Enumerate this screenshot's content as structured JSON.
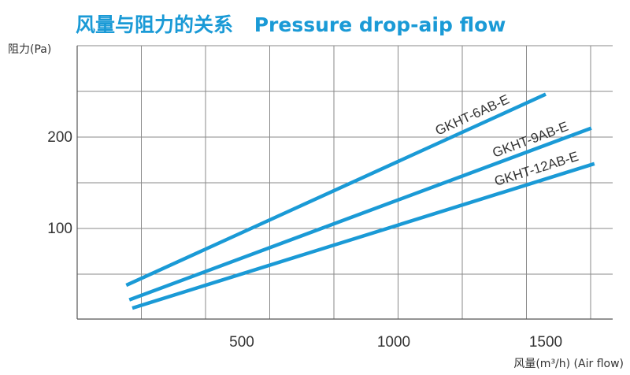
{
  "colors": {
    "title": "#1a9ad6",
    "series": "#1a9ad6",
    "grid": "#8a8a8a",
    "text": "#333333"
  },
  "chart_data": {
    "type": "line",
    "title": "风量与阻力的关系",
    "subtitle": "Pressure drop-aip flow",
    "xlabel": "风量(m³/h)  (Air flow)",
    "ylabel": "阻力(Pa)",
    "xlim": [
      -50,
      1800
    ],
    "ylim": [
      -15,
      300
    ],
    "x_ticks": [
      500,
      1000,
      1500
    ],
    "y_ticks": [
      100,
      200
    ],
    "grid": true,
    "legend": "inline labels at line ends",
    "series": [
      {
        "name": "GKHT-6AB-E",
        "x": [
          120,
          1500
        ],
        "y": [
          37,
          246
        ]
      },
      {
        "name": "GKHT-9AB-E",
        "x": [
          130,
          1650
        ],
        "y": [
          21,
          209
        ]
      },
      {
        "name": "GKHT-12AB-E",
        "x": [
          140,
          1660
        ],
        "y": [
          12,
          170
        ]
      }
    ]
  }
}
